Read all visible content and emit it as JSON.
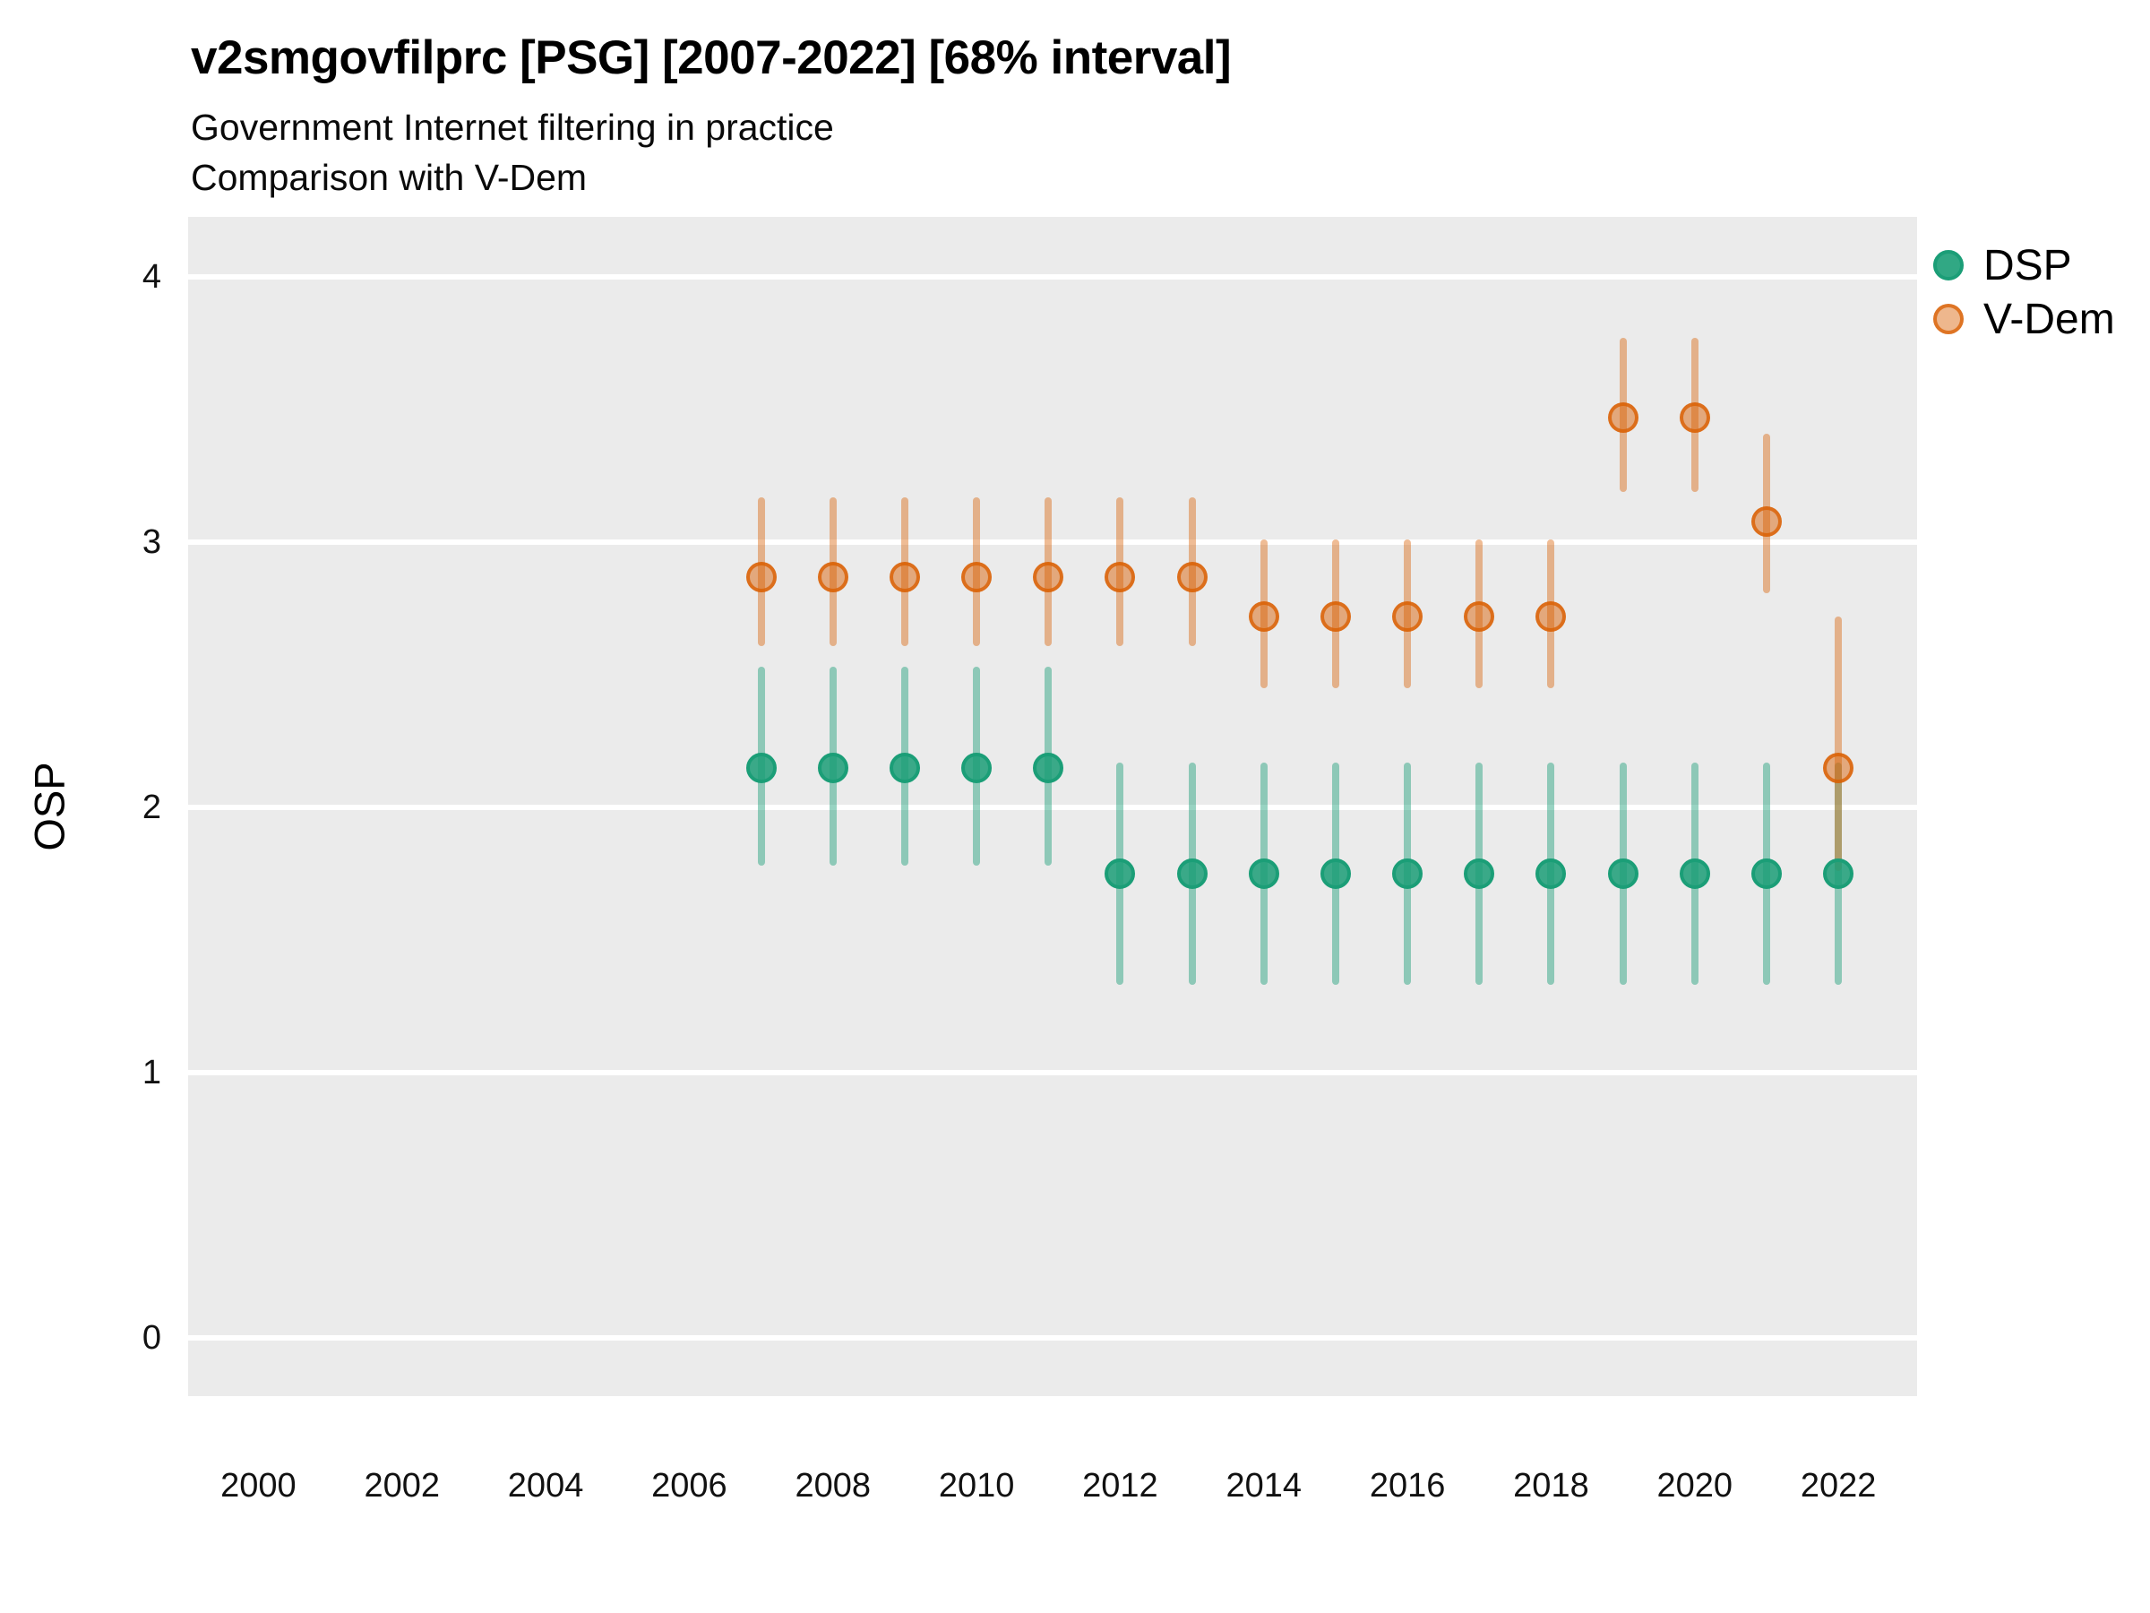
{
  "chart_data": {
    "type": "pointrange",
    "title": "v2smgovfilprc [PSG] [2007-2022] [68% interval]",
    "subtitle_line1": "Government Internet filtering in practice",
    "subtitle_line2": "Comparison with V-Dem",
    "ylabel": "OSP",
    "xlabel": "",
    "interval_level": "68%",
    "x_ticks": [
      2000,
      2002,
      2004,
      2006,
      2008,
      2010,
      2012,
      2014,
      2016,
      2018,
      2020,
      2022
    ],
    "y_ticks": [
      0,
      1,
      2,
      3,
      4
    ],
    "xlim": [
      1999,
      2023.1
    ],
    "ylim": [
      -0.22,
      4.23
    ],
    "grid": "white-major-horizontal-on-gray-panel",
    "legend_position": "right",
    "panel_background": "#EBEBEB",
    "gridline_color": "#FFFFFF",
    "series": [
      {
        "name": "DSP",
        "color": "#1B9E77",
        "points": [
          {
            "year": 2007,
            "est": 2.15,
            "lo": 1.78,
            "hi": 2.53
          },
          {
            "year": 2008,
            "est": 2.15,
            "lo": 1.78,
            "hi": 2.53
          },
          {
            "year": 2009,
            "est": 2.15,
            "lo": 1.78,
            "hi": 2.53
          },
          {
            "year": 2010,
            "est": 2.15,
            "lo": 1.78,
            "hi": 2.53
          },
          {
            "year": 2011,
            "est": 2.15,
            "lo": 1.78,
            "hi": 2.53
          },
          {
            "year": 2012,
            "est": 1.75,
            "lo": 1.33,
            "hi": 2.17
          },
          {
            "year": 2013,
            "est": 1.75,
            "lo": 1.33,
            "hi": 2.17
          },
          {
            "year": 2014,
            "est": 1.75,
            "lo": 1.33,
            "hi": 2.17
          },
          {
            "year": 2015,
            "est": 1.75,
            "lo": 1.33,
            "hi": 2.17
          },
          {
            "year": 2016,
            "est": 1.75,
            "lo": 1.33,
            "hi": 2.17
          },
          {
            "year": 2017,
            "est": 1.75,
            "lo": 1.33,
            "hi": 2.17
          },
          {
            "year": 2018,
            "est": 1.75,
            "lo": 1.33,
            "hi": 2.17
          },
          {
            "year": 2019,
            "est": 1.75,
            "lo": 1.33,
            "hi": 2.17
          },
          {
            "year": 2020,
            "est": 1.75,
            "lo": 1.33,
            "hi": 2.17
          },
          {
            "year": 2021,
            "est": 1.75,
            "lo": 1.33,
            "hi": 2.17
          },
          {
            "year": 2022,
            "est": 1.75,
            "lo": 1.33,
            "hi": 2.17
          }
        ]
      },
      {
        "name": "V-Dem",
        "color": "#D95F02",
        "points": [
          {
            "year": 2007,
            "est": 2.87,
            "lo": 2.61,
            "hi": 3.17
          },
          {
            "year": 2008,
            "est": 2.87,
            "lo": 2.61,
            "hi": 3.17
          },
          {
            "year": 2009,
            "est": 2.87,
            "lo": 2.61,
            "hi": 3.17
          },
          {
            "year": 2010,
            "est": 2.87,
            "lo": 2.61,
            "hi": 3.17
          },
          {
            "year": 2011,
            "est": 2.87,
            "lo": 2.61,
            "hi": 3.17
          },
          {
            "year": 2012,
            "est": 2.87,
            "lo": 2.61,
            "hi": 3.17
          },
          {
            "year": 2013,
            "est": 2.87,
            "lo": 2.61,
            "hi": 3.17
          },
          {
            "year": 2014,
            "est": 2.72,
            "lo": 2.45,
            "hi": 3.01
          },
          {
            "year": 2015,
            "est": 2.72,
            "lo": 2.45,
            "hi": 3.01
          },
          {
            "year": 2016,
            "est": 2.72,
            "lo": 2.45,
            "hi": 3.01
          },
          {
            "year": 2017,
            "est": 2.72,
            "lo": 2.45,
            "hi": 3.01
          },
          {
            "year": 2018,
            "est": 2.72,
            "lo": 2.45,
            "hi": 3.01
          },
          {
            "year": 2019,
            "est": 3.47,
            "lo": 3.19,
            "hi": 3.77
          },
          {
            "year": 2020,
            "est": 3.47,
            "lo": 3.19,
            "hi": 3.77
          },
          {
            "year": 2021,
            "est": 3.08,
            "lo": 2.81,
            "hi": 3.41
          },
          {
            "year": 2022,
            "est": 2.15,
            "lo": 1.76,
            "hi": 2.72
          }
        ]
      }
    ]
  }
}
